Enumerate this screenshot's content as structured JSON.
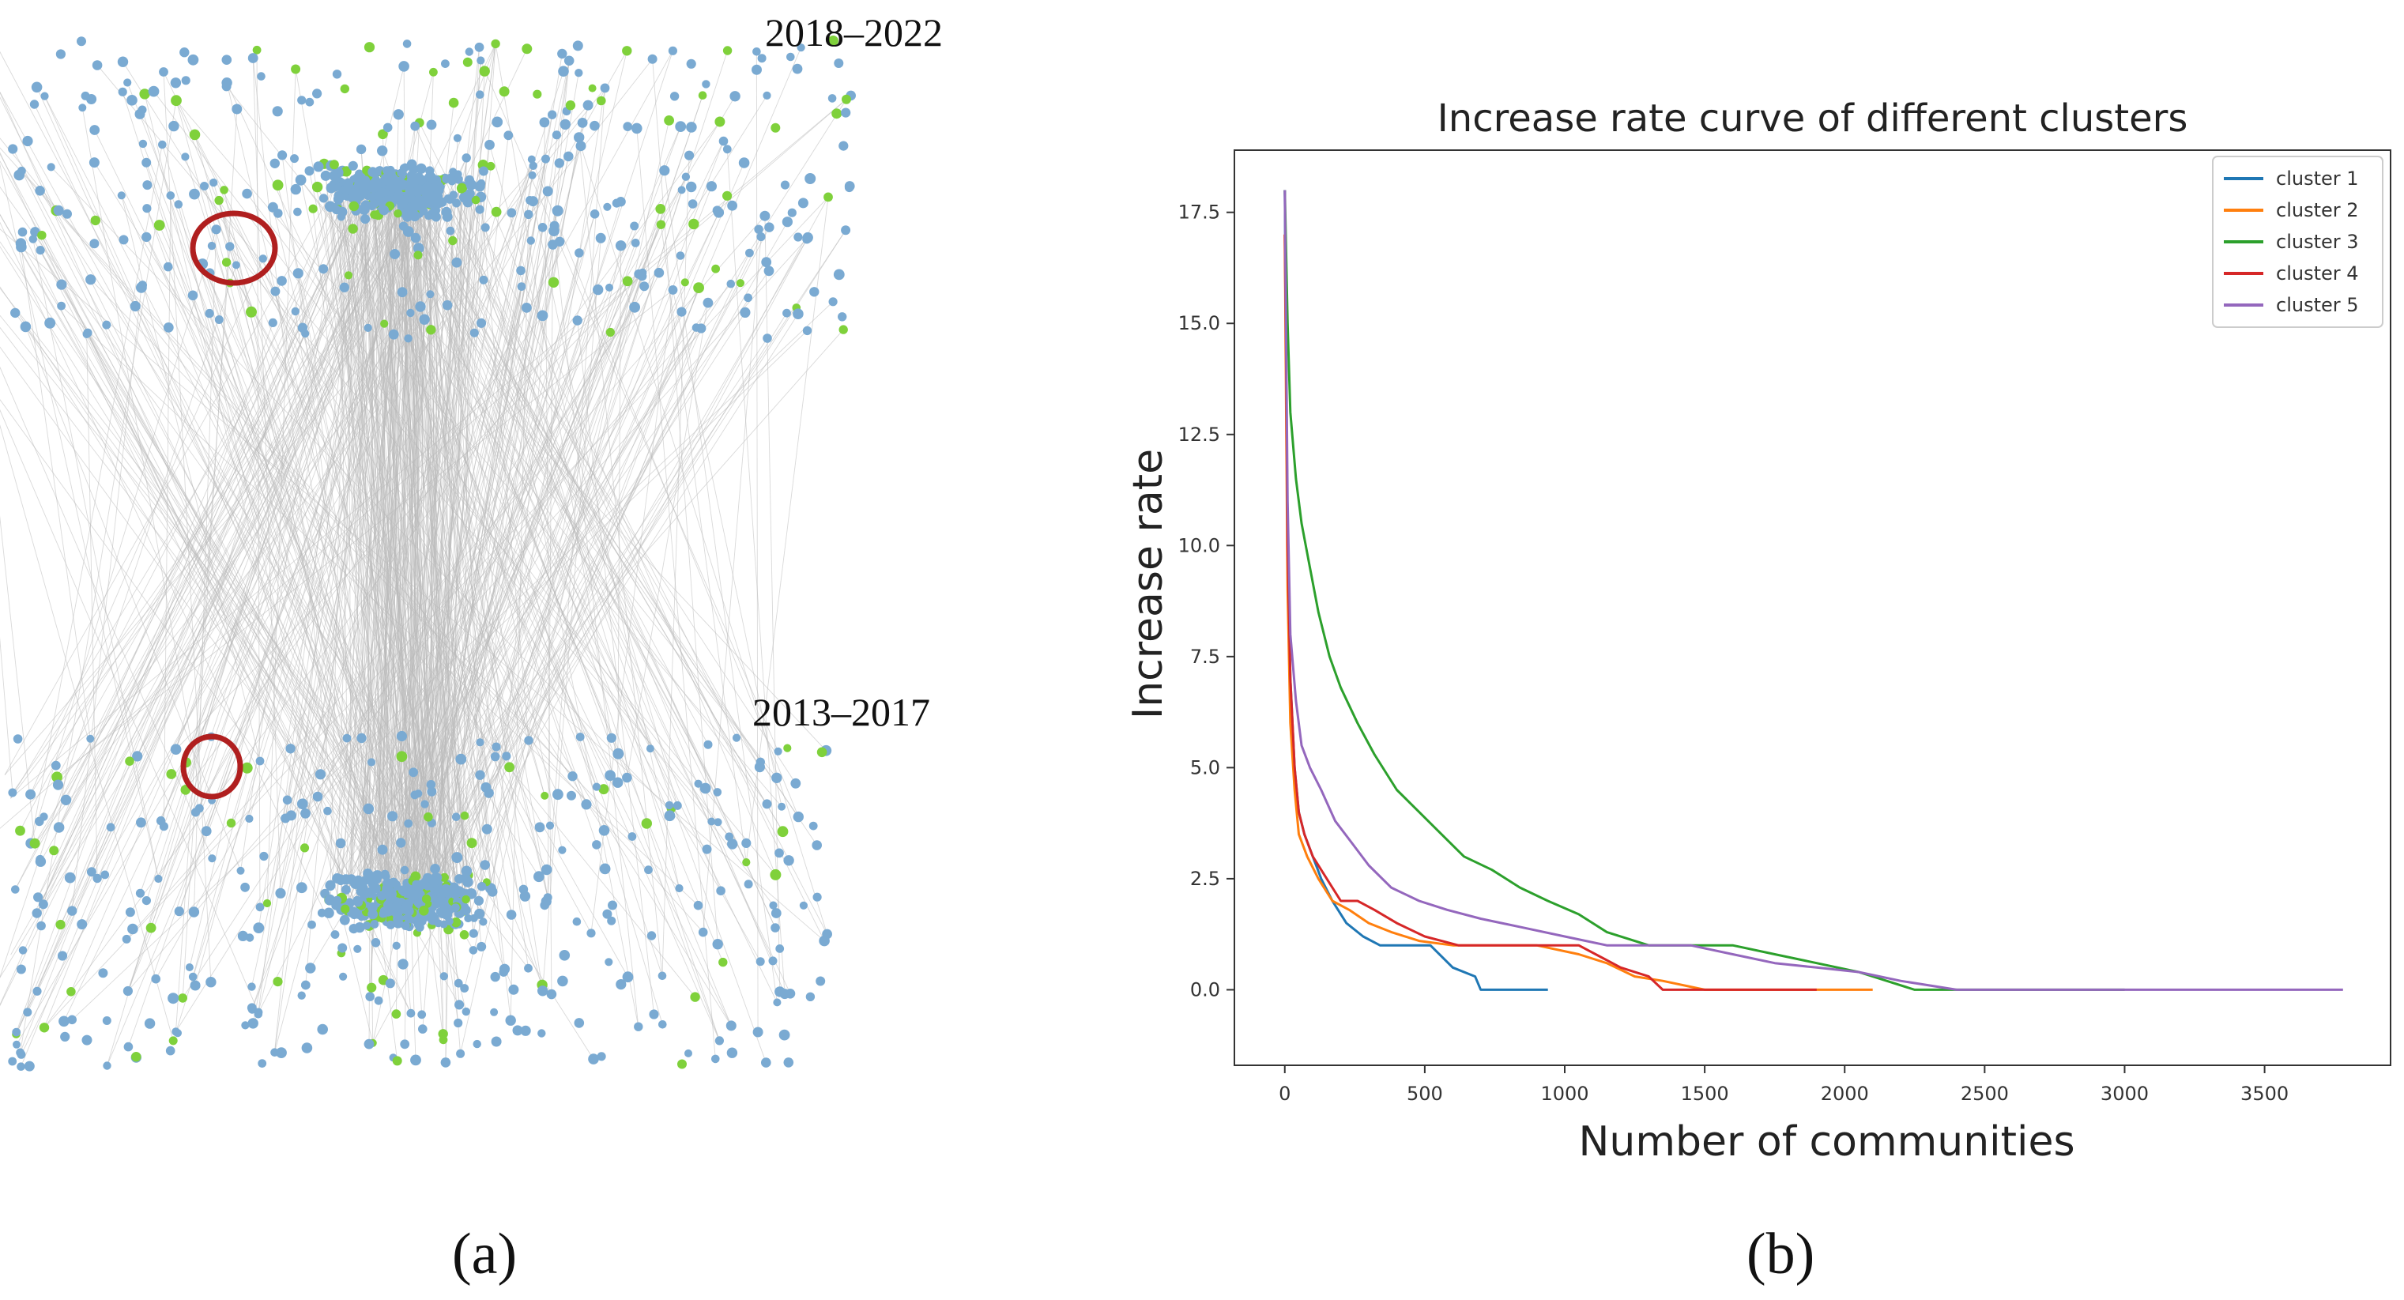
{
  "network_panel": {
    "caption": "(a)",
    "period_top": "2018–2022",
    "period_bottom": "2013–2017",
    "colors": {
      "node_main": "#7aaad2",
      "node_highlight": "#7fd13b",
      "edge": "#b9b9b9",
      "marker": "#b01f1f"
    }
  },
  "chart_panel": {
    "caption": "(b)"
  },
  "chart_data": {
    "type": "line",
    "title": "Increase rate curve of different clusters",
    "xlabel": "Number of communities",
    "ylabel": "Increase rate",
    "xlim": [
      -180,
      3950
    ],
    "ylim": [
      -1.7,
      18.9
    ],
    "xticks": [
      0,
      500,
      1000,
      1500,
      2000,
      2500,
      3000,
      3500
    ],
    "yticks": [
      0.0,
      2.5,
      5.0,
      7.5,
      10.0,
      12.5,
      15.0,
      17.5
    ],
    "legend_position": "top-right",
    "series": [
      {
        "name": "cluster 1",
        "color": "#1f77b4",
        "x": [
          0,
          5,
          10,
          20,
          35,
          50,
          70,
          100,
          130,
          170,
          220,
          280,
          340,
          420,
          520,
          600,
          680,
          700,
          940
        ],
        "y": [
          18,
          14,
          10,
          7,
          5,
          4,
          3.5,
          3,
          2.5,
          2,
          1.5,
          1.2,
          1,
          1,
          1,
          0.5,
          0.3,
          0,
          0
        ]
      },
      {
        "name": "cluster 2",
        "color": "#ff7f0e",
        "x": [
          0,
          5,
          10,
          20,
          35,
          50,
          80,
          120,
          170,
          230,
          300,
          380,
          480,
          600,
          750,
          900,
          1050,
          1150,
          1250,
          1350,
          1500,
          1700,
          1900,
          2000,
          2100
        ],
        "y": [
          17,
          13,
          9,
          6,
          4.5,
          3.5,
          3,
          2.5,
          2,
          1.8,
          1.5,
          1.3,
          1.1,
          1,
          1,
          1,
          0.8,
          0.6,
          0.3,
          0.2,
          0,
          0,
          0,
          0,
          0
        ]
      },
      {
        "name": "cluster 3",
        "color": "#2ca02c",
        "x": [
          0,
          10,
          20,
          40,
          60,
          90,
          120,
          160,
          200,
          260,
          320,
          400,
          480,
          560,
          640,
          740,
          840,
          940,
          1050,
          1150,
          1300,
          1450,
          1600,
          1750,
          1900,
          2050,
          2150,
          2250,
          2500,
          3000
        ],
        "y": [
          18,
          15,
          13,
          11.5,
          10.5,
          9.5,
          8.5,
          7.5,
          6.8,
          6,
          5.3,
          4.5,
          4,
          3.5,
          3,
          2.7,
          2.3,
          2,
          1.7,
          1.3,
          1,
          1,
          1,
          0.8,
          0.6,
          0.4,
          0.2,
          0,
          0,
          0
        ]
      },
      {
        "name": "cluster 4",
        "color": "#d62728",
        "x": [
          0,
          5,
          10,
          20,
          35,
          50,
          70,
          100,
          150,
          200,
          260,
          320,
          400,
          500,
          620,
          760,
          900,
          1050,
          1200,
          1300,
          1350,
          1450,
          1500,
          1600,
          1700,
          1800,
          1900
        ],
        "y": [
          17,
          14,
          10,
          7,
          5,
          4,
          3.5,
          3,
          2.5,
          2,
          2,
          1.8,
          1.5,
          1.2,
          1,
          1,
          1,
          1,
          0.5,
          0.3,
          0,
          0,
          0,
          0,
          0,
          0,
          0
        ]
      },
      {
        "name": "cluster 5",
        "color": "#9467bd",
        "x": [
          0,
          10,
          20,
          40,
          60,
          90,
          130,
          180,
          240,
          300,
          380,
          480,
          580,
          700,
          850,
          1000,
          1150,
          1300,
          1450,
          1600,
          1750,
          1900,
          2050,
          2200,
          2400,
          2800,
          3200,
          3500,
          3780
        ],
        "y": [
          18,
          11,
          8,
          6.5,
          5.5,
          5,
          4.5,
          3.8,
          3.3,
          2.8,
          2.3,
          2,
          1.8,
          1.6,
          1.4,
          1.2,
          1,
          1,
          1,
          0.8,
          0.6,
          0.5,
          0.4,
          0.2,
          0,
          0,
          0,
          0,
          0
        ]
      }
    ]
  }
}
